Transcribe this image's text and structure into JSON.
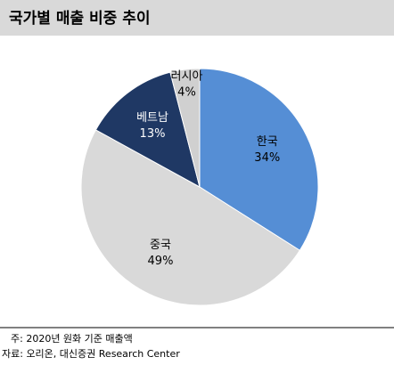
{
  "chart_data": {
    "type": "pie",
    "title": "국가별 매출 비중 추이",
    "categories": [
      "한국",
      "중국",
      "베트남",
      "러시아"
    ],
    "values": [
      34,
      49,
      13,
      4
    ],
    "value_labels": [
      "34%",
      "49%",
      "13%",
      "4%"
    ],
    "colors": [
      "#558ed5",
      "#d9d9d9",
      "#1f3864",
      "#d0d0d0"
    ],
    "notes": [
      "주: 2020년 원화 기준 매출액",
      "자료: 오리온, 대신증권 Research Center"
    ]
  }
}
